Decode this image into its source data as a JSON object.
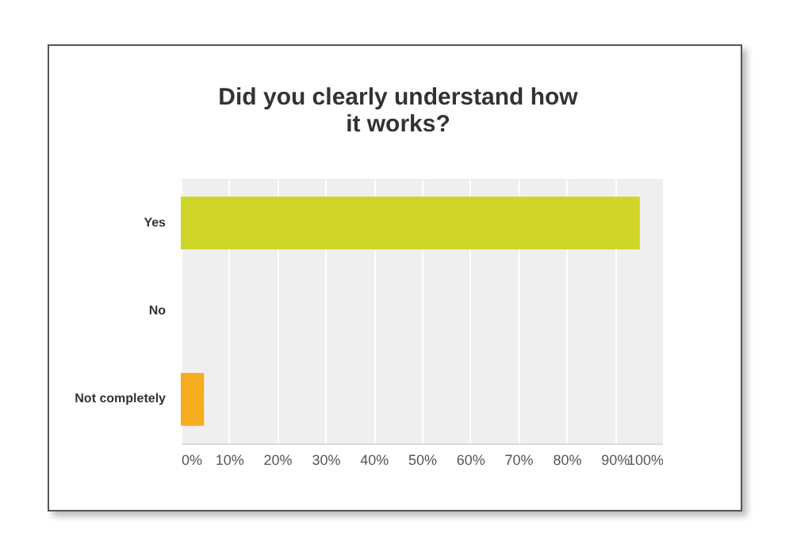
{
  "chart_data": {
    "type": "bar",
    "orientation": "horizontal",
    "title": "Did you clearly understand how it works?",
    "categories": [
      "Yes",
      "No",
      "Not completely"
    ],
    "values": [
      95.2,
      0,
      4.8
    ],
    "colors": [
      "#cfd628",
      "#1f9ac9",
      "#f6ad1f"
    ],
    "xlim": [
      0,
      100
    ],
    "xticks": [
      {
        "value": 0,
        "label": "0%"
      },
      {
        "value": 10,
        "label": "10%"
      },
      {
        "value": 20,
        "label": "20%"
      },
      {
        "value": 30,
        "label": "30%"
      },
      {
        "value": 40,
        "label": "40%"
      },
      {
        "value": 50,
        "label": "50%"
      },
      {
        "value": 60,
        "label": "60%"
      },
      {
        "value": 70,
        "label": "70%"
      },
      {
        "value": 80,
        "label": "80%"
      },
      {
        "value": 90,
        "label": "90%"
      },
      {
        "value": 100,
        "label": "100%"
      }
    ],
    "grid": "x",
    "legend": false
  }
}
